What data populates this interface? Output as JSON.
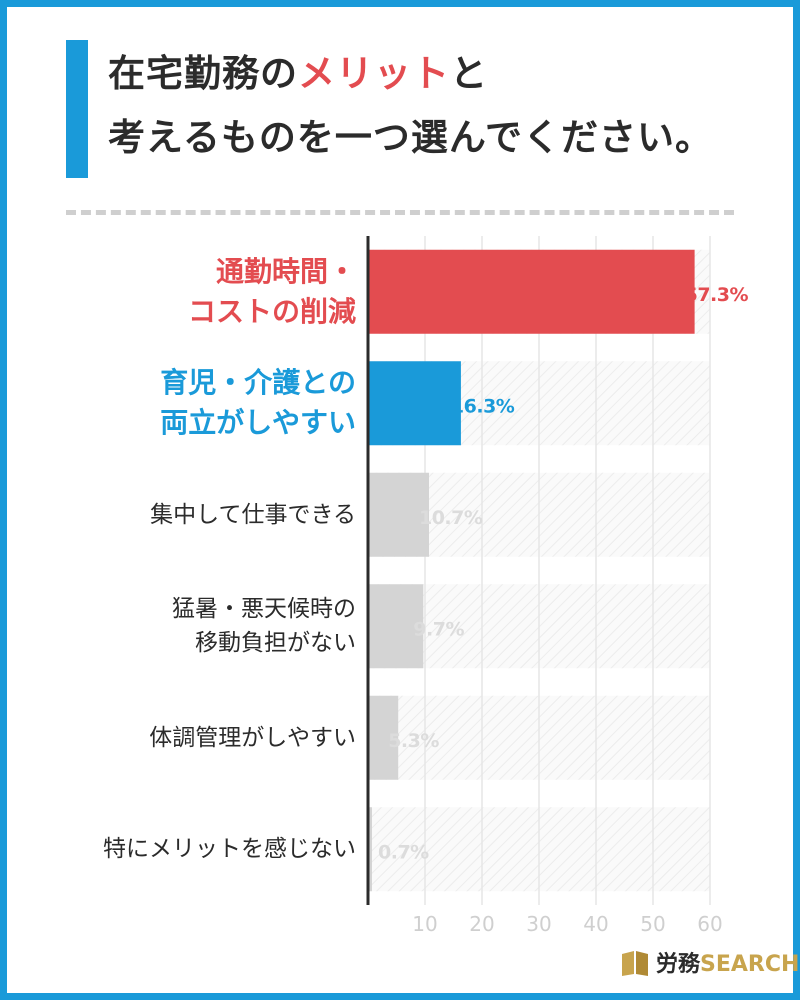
{
  "title": {
    "line1_prefix": "在宅勤務の",
    "line1_accent": "メリット",
    "line1_suffix": "と",
    "line2": "考えるものを一つ選んでください。"
  },
  "colors": {
    "frame": "#1a9ad9",
    "accent_red": "#e34c50",
    "accent_blue": "#1a9ad9",
    "bar_gray": "#d4d4d4",
    "label_gray": "#dcdcdc",
    "text": "#2b2b2b",
    "grid": "#e6e6e6"
  },
  "logo": {
    "kanji": "労務",
    "search": "SEARCH",
    "icon": "book-icon"
  },
  "chart_data": {
    "type": "bar",
    "orientation": "horizontal",
    "categories": [
      [
        "通勤時間・",
        "コストの削減"
      ],
      [
        "育児・介護との",
        "両立がしやすい"
      ],
      [
        "集中して仕事できる"
      ],
      [
        "猛暑・悪天候時の",
        "移動負担がない"
      ],
      [
        "体調管理がしやすい"
      ],
      [
        "特にメリットを感じない"
      ]
    ],
    "values": [
      57.3,
      16.3,
      10.7,
      9.7,
      5.3,
      0.7
    ],
    "value_labels": [
      "57.3%",
      "16.3%",
      "10.7%",
      "9.7%",
      "5.3%",
      "0.7%"
    ],
    "bar_colors": [
      "#e34c50",
      "#1a9ad9",
      "#d4d4d4",
      "#d4d4d4",
      "#d4d4d4",
      "#d4d4d4"
    ],
    "label_colors": [
      "#e34c50",
      "#1a9ad9",
      "#2b2b2b",
      "#2b2b2b",
      "#2b2b2b",
      "#2b2b2b"
    ],
    "value_label_colors": [
      "#e34c50",
      "#1a9ad9",
      "#dcdcdc",
      "#dcdcdc",
      "#dcdcdc",
      "#dcdcdc"
    ],
    "highlight": [
      true,
      true,
      false,
      false,
      false,
      false
    ],
    "xlim": [
      0,
      60
    ],
    "xticks": [
      10,
      20,
      30,
      40,
      50,
      60
    ],
    "grid": true
  }
}
